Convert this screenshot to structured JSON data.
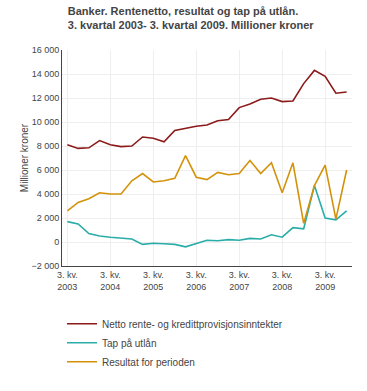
{
  "chart_data": {
    "type": "line",
    "title": "Banker. Rentenetto, resultat og tap på utlån.",
    "subtitle": "3. kvartal 2003- 3. kvartal 2009. Millioner kroner",
    "ylabel": "Millioner kroner",
    "categories": [
      "3. kv.\n2003",
      null,
      null,
      null,
      "3. kv.\n2004",
      null,
      null,
      null,
      "3. kv.\n2005",
      null,
      null,
      null,
      "3. kv.\n2006",
      null,
      null,
      null,
      "3. kv.\n2007",
      null,
      null,
      null,
      "3. kv.\n2008",
      null,
      null,
      null,
      "3. kv.\n2009",
      null,
      null
    ],
    "series": [
      {
        "name": "Netto rente- og kredittprovisjonsinntekter",
        "color": "#8B1A1A",
        "values": [
          8100,
          7800,
          7850,
          8450,
          8100,
          7950,
          8000,
          8750,
          8650,
          8350,
          9300,
          9500,
          9650,
          9750,
          10100,
          10200,
          11200,
          11500,
          11900,
          12000,
          11700,
          11750,
          13200,
          14300,
          13800,
          12400,
          12500
        ]
      },
      {
        "name": "Tap på utlån",
        "color": "#2AADA8",
        "values": [
          1700,
          1500,
          700,
          500,
          400,
          300,
          250,
          -200,
          -100,
          -150,
          -200,
          -400,
          -150,
          150,
          100,
          200,
          150,
          300,
          250,
          600,
          400,
          1200,
          1100,
          4700,
          2000,
          1850,
          2600
        ]
      },
      {
        "name": "Resultat for perioden",
        "color": "#D4920A",
        "values": [
          2600,
          3300,
          3600,
          4100,
          4000,
          4000,
          5100,
          5700,
          5000,
          5100,
          5300,
          7200,
          5400,
          5200,
          5800,
          5600,
          5700,
          6800,
          5700,
          6600,
          4100,
          6600,
          1550,
          4700,
          6400,
          1900,
          6000
        ]
      }
    ],
    "ylim": [
      -2000,
      16000
    ],
    "yticks": [
      {
        "value": -2000,
        "label": "−2 000"
      },
      0,
      {
        "value": 2000,
        "label": "2 000"
      },
      {
        "value": 4000,
        "label": "4 000"
      },
      {
        "value": 6000,
        "label": "6 000"
      },
      {
        "value": 8000,
        "label": "8 000"
      },
      {
        "value": 10000,
        "label": "10 000"
      },
      {
        "value": 12000,
        "label": "12 000"
      },
      {
        "value": 14000,
        "label": "14 000"
      },
      {
        "value": 16000,
        "label": "16 000"
      }
    ],
    "grid": true,
    "legend": "bottom"
  }
}
